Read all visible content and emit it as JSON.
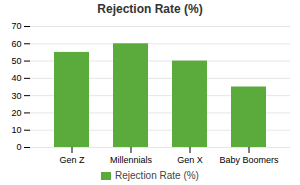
{
  "chart_data": {
    "type": "bar",
    "title": "Rejection Rate (%)",
    "categories": [
      "Gen Z",
      "Millennials",
      "Gen X",
      "Baby Boomers"
    ],
    "series": [
      {
        "name": "Rejection Rate (%)",
        "color": "#5aaa3c",
        "values": [
          55,
          60,
          50,
          35
        ]
      }
    ],
    "ylim": [
      0,
      70
    ],
    "yticks": [
      0,
      10,
      20,
      30,
      40,
      50,
      60,
      70
    ],
    "grid": true,
    "legend": "bottom"
  }
}
